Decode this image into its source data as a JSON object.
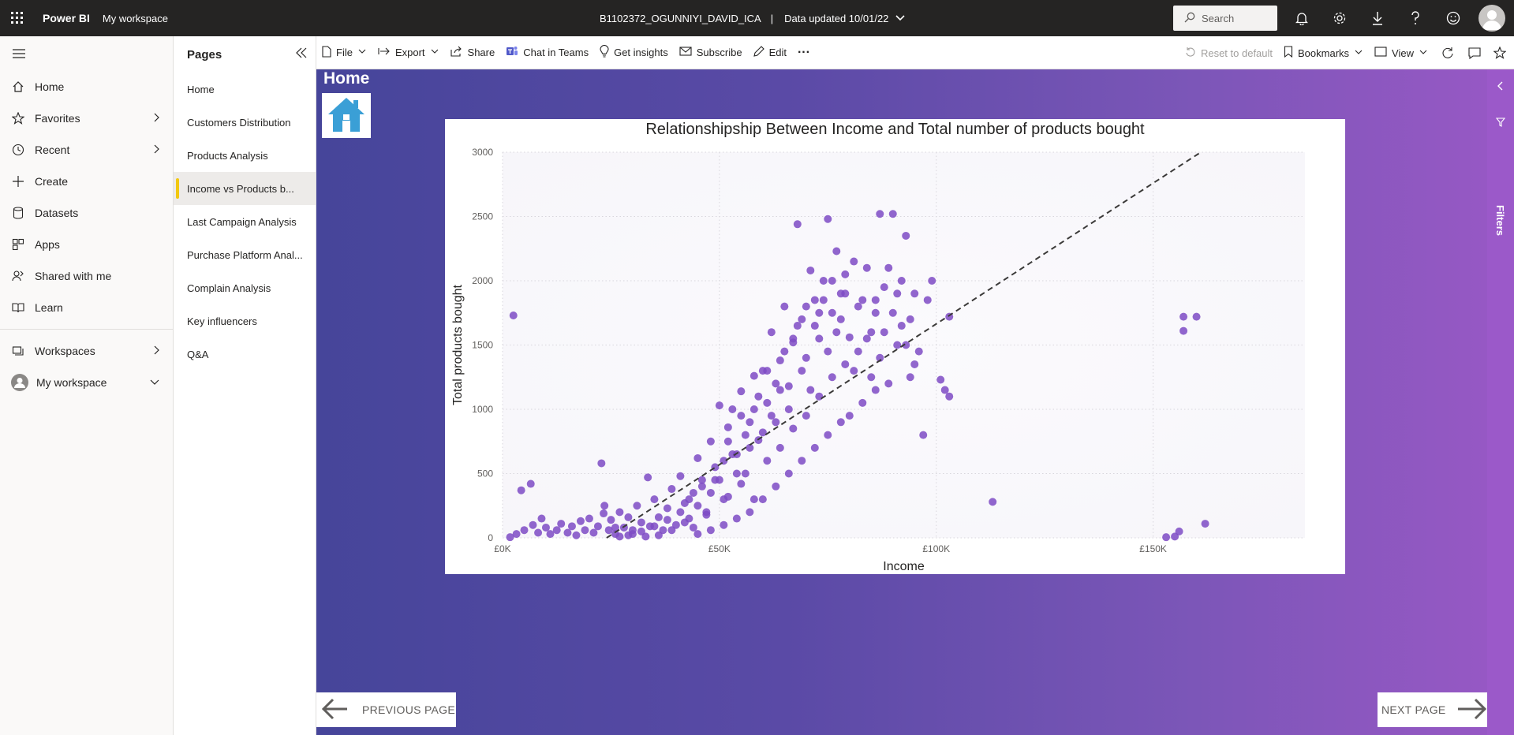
{
  "topbar": {
    "brand": "Power BI",
    "workspace_link": "My workspace",
    "report_name": "B1102372_OGUNNIYI_DAVID_ICA",
    "separator": "|",
    "data_updated": "Data updated 10/01/22",
    "search_placeholder": "Search"
  },
  "leftnav": {
    "items": [
      {
        "label": "Home",
        "icon": "home-icon"
      },
      {
        "label": "Favorites",
        "icon": "star-icon",
        "chevron": true
      },
      {
        "label": "Recent",
        "icon": "clock-icon",
        "chevron": true
      },
      {
        "label": "Create",
        "icon": "plus-icon"
      },
      {
        "label": "Datasets",
        "icon": "database-icon"
      },
      {
        "label": "Apps",
        "icon": "apps-icon"
      },
      {
        "label": "Shared with me",
        "icon": "shared-icon"
      },
      {
        "label": "Learn",
        "icon": "book-icon"
      }
    ],
    "workspaces": "Workspaces",
    "my_workspace": "My workspace"
  },
  "pages_panel": {
    "title": "Pages",
    "pages": [
      "Home",
      "Customers Distribution",
      "Products Analysis",
      "Income vs Products b...",
      "Last Campaign Analysis",
      "Purchase Platform Anal...",
      "Complain Analysis",
      "Key influencers",
      "Q&A"
    ],
    "active_index": 3
  },
  "actionbar": {
    "file": "File",
    "export": "Export",
    "share": "Share",
    "chat_in_teams": "Chat in Teams",
    "get_insights": "Get insights",
    "subscribe": "Subscribe",
    "edit": "Edit",
    "more": "···",
    "reset_to_default": "Reset to default",
    "bookmarks": "Bookmarks",
    "view": "View"
  },
  "report": {
    "home_title": "Home",
    "prev_label": "PREVIOUS PAGE",
    "next_label": "NEXT PAGE",
    "filters_label": "Filters"
  },
  "colors": {
    "point": "#7e4bc4",
    "trend": "#3b3a39",
    "home_icon": "#3a9fd6"
  },
  "chart_data": {
    "type": "scatter",
    "title": "Relationshipship Between Income and Total number of products bought",
    "xlabel": "Income",
    "ylabel": "Total products bought",
    "xlim": [
      0,
      185000
    ],
    "ylim": [
      0,
      3000
    ],
    "x_ticks": [
      {
        "value": 0,
        "label": "£0K"
      },
      {
        "value": 50000,
        "label": "£50K"
      },
      {
        "value": 100000,
        "label": "£100K"
      },
      {
        "value": 150000,
        "label": "£150K"
      }
    ],
    "y_ticks": [
      {
        "value": 0,
        "label": "0"
      },
      {
        "value": 500,
        "label": "500"
      },
      {
        "value": 1000,
        "label": "1000"
      },
      {
        "value": 1500,
        "label": "1500"
      },
      {
        "value": 2000,
        "label": "2000"
      },
      {
        "value": 2500,
        "label": "2500"
      },
      {
        "value": 3000,
        "label": "3000"
      }
    ],
    "grid": true,
    "trend_line": [
      [
        24000,
        0
      ],
      [
        161000,
        3000
      ]
    ],
    "points": [
      [
        1730,
        5
      ],
      [
        2500,
        1730
      ],
      [
        4300,
        370
      ],
      [
        6500,
        420
      ],
      [
        3200,
        30
      ],
      [
        5000,
        60
      ],
      [
        7000,
        100
      ],
      [
        8200,
        40
      ],
      [
        9000,
        150
      ],
      [
        10000,
        80
      ],
      [
        11000,
        30
      ],
      [
        12500,
        60
      ],
      [
        13500,
        110
      ],
      [
        15000,
        40
      ],
      [
        16000,
        90
      ],
      [
        17000,
        20
      ],
      [
        18000,
        130
      ],
      [
        19000,
        60
      ],
      [
        20000,
        150
      ],
      [
        21000,
        40
      ],
      [
        22000,
        90
      ],
      [
        22800,
        580
      ],
      [
        23500,
        250
      ],
      [
        24500,
        60
      ],
      [
        25000,
        140
      ],
      [
        26000,
        30
      ],
      [
        27000,
        200
      ],
      [
        28000,
        80
      ],
      [
        29000,
        160
      ],
      [
        30000,
        30
      ],
      [
        31000,
        250
      ],
      [
        32000,
        120
      ],
      [
        23300,
        190
      ],
      [
        33500,
        470
      ],
      [
        34000,
        90
      ],
      [
        35000,
        300
      ],
      [
        36000,
        160
      ],
      [
        37000,
        60
      ],
      [
        38000,
        230
      ],
      [
        39000,
        380
      ],
      [
        40000,
        100
      ],
      [
        41000,
        480
      ],
      [
        42000,
        270
      ],
      [
        43000,
        150
      ],
      [
        44000,
        350
      ],
      [
        45000,
        620
      ],
      [
        46000,
        400
      ],
      [
        47000,
        200
      ],
      [
        48000,
        750
      ],
      [
        49000,
        450
      ],
      [
        50000,
        1030
      ],
      [
        51000,
        300
      ],
      [
        52000,
        860
      ],
      [
        53000,
        1000
      ],
      [
        54000,
        650
      ],
      [
        55000,
        1140
      ],
      [
        56000,
        500
      ],
      [
        57000,
        900
      ],
      [
        58000,
        1260
      ],
      [
        59000,
        760
      ],
      [
        60000,
        1300
      ],
      [
        61000,
        1050
      ],
      [
        62000,
        1600
      ],
      [
        63000,
        900
      ],
      [
        64000,
        1380
      ],
      [
        65000,
        1800
      ],
      [
        66000,
        1180
      ],
      [
        67000,
        1520
      ],
      [
        68000,
        2440
      ],
      [
        69000,
        1700
      ],
      [
        70000,
        1400
      ],
      [
        71000,
        2080
      ],
      [
        72000,
        1850
      ],
      [
        73000,
        1550
      ],
      [
        74000,
        2000
      ],
      [
        75000,
        2480
      ],
      [
        76000,
        1750
      ],
      [
        77000,
        2230
      ],
      [
        78000,
        1900
      ],
      [
        79000,
        2050
      ],
      [
        80000,
        1560
      ],
      [
        81000,
        2150
      ],
      [
        82000,
        1800
      ],
      [
        83000,
        1850
      ],
      [
        84000,
        2100
      ],
      [
        85000,
        1600
      ],
      [
        86000,
        1850
      ],
      [
        87000,
        2520
      ],
      [
        88000,
        1600
      ],
      [
        89000,
        2100
      ],
      [
        90000,
        2520
      ],
      [
        91000,
        1500
      ],
      [
        92000,
        2000
      ],
      [
        93000,
        2350
      ],
      [
        94000,
        1250
      ],
      [
        95000,
        1900
      ],
      [
        96000,
        1450
      ],
      [
        97000,
        800
      ],
      [
        98000,
        1850
      ],
      [
        99000,
        2000
      ],
      [
        103000,
        1720
      ],
      [
        102000,
        1150
      ],
      [
        103000,
        1100
      ],
      [
        101000,
        1230
      ],
      [
        113000,
        280
      ],
      [
        153000,
        5
      ],
      [
        155000,
        10
      ],
      [
        156000,
        50
      ],
      [
        157000,
        1720
      ],
      [
        157000,
        1610
      ],
      [
        160000,
        1720
      ],
      [
        162000,
        110
      ],
      [
        47000,
        180
      ],
      [
        52000,
        320
      ],
      [
        55000,
        420
      ],
      [
        58000,
        300
      ],
      [
        61000,
        600
      ],
      [
        64000,
        700
      ],
      [
        67000,
        850
      ],
      [
        70000,
        950
      ],
      [
        73000,
        1100
      ],
      [
        76000,
        1250
      ],
      [
        79000,
        1350
      ],
      [
        82000,
        1450
      ],
      [
        85000,
        1250
      ],
      [
        66000,
        1000
      ],
      [
        63000,
        1200
      ],
      [
        69000,
        1300
      ],
      [
        72000,
        1650
      ],
      [
        75000,
        1450
      ],
      [
        78000,
        1700
      ],
      [
        81000,
        1300
      ],
      [
        84000,
        1550
      ],
      [
        87000,
        1400
      ],
      [
        60000,
        820
      ],
      [
        57000,
        700
      ],
      [
        54000,
        500
      ],
      [
        51000,
        600
      ],
      [
        48000,
        350
      ],
      [
        45000,
        250
      ],
      [
        42000,
        120
      ],
      [
        39000,
        60
      ],
      [
        36000,
        20
      ],
      [
        33000,
        10
      ],
      [
        30000,
        60
      ],
      [
        27000,
        10
      ],
      [
        86000,
        1750
      ],
      [
        88000,
        1950
      ],
      [
        90000,
        1750
      ],
      [
        92000,
        1650
      ],
      [
        94000,
        1700
      ],
      [
        74000,
        1850
      ],
      [
        77000,
        1600
      ],
      [
        71000,
        1150
      ],
      [
        68000,
        1650
      ],
      [
        65000,
        1450
      ],
      [
        62000,
        950
      ],
      [
        59000,
        1100
      ],
      [
        56000,
        800
      ],
      [
        53000,
        650
      ],
      [
        50000,
        450
      ],
      [
        44000,
        80
      ],
      [
        41000,
        200
      ],
      [
        38000,
        140
      ],
      [
        35000,
        90
      ],
      [
        32000,
        50
      ],
      [
        29000,
        20
      ],
      [
        26000,
        80
      ],
      [
        80000,
        950
      ],
      [
        83000,
        1050
      ],
      [
        86000,
        1150
      ],
      [
        89000,
        1200
      ],
      [
        78000,
        900
      ],
      [
        75000,
        800
      ],
      [
        72000,
        700
      ],
      [
        69000,
        600
      ],
      [
        66000,
        500
      ],
      [
        63000,
        400
      ],
      [
        60000,
        300
      ],
      [
        57000,
        200
      ],
      [
        54000,
        150
      ],
      [
        51000,
        100
      ],
      [
        48000,
        60
      ],
      [
        45000,
        30
      ],
      [
        91000,
        1900
      ],
      [
        93000,
        1500
      ],
      [
        95000,
        1350
      ],
      [
        79000,
        1900
      ],
      [
        76000,
        2000
      ],
      [
        73000,
        1750
      ],
      [
        70000,
        1800
      ],
      [
        67000,
        1550
      ],
      [
        64000,
        1150
      ],
      [
        61000,
        1300
      ],
      [
        58000,
        1000
      ],
      [
        55000,
        950
      ],
      [
        52000,
        750
      ],
      [
        49000,
        550
      ],
      [
        46000,
        450
      ],
      [
        43000,
        300
      ]
    ]
  }
}
